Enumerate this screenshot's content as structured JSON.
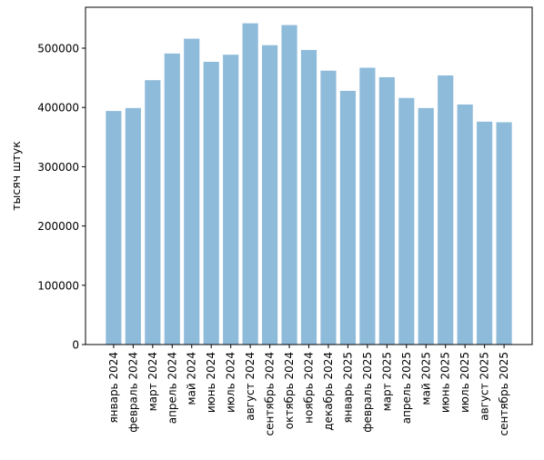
{
  "chart_data": {
    "type": "bar",
    "title": "",
    "xlabel": "",
    "ylabel": "тысяч штук",
    "categories": [
      "январь 2024",
      "февраль 2024",
      "март 2024",
      "апрель 2024",
      "май 2024",
      "июнь 2024",
      "июль 2024",
      "август 2024",
      "сентябрь 2024",
      "октябрь 2024",
      "ноябрь 2024",
      "декабрь 2024",
      "январь 2025",
      "февраль 2025",
      "март 2025",
      "апрель 2025",
      "май 2025",
      "июнь 2025",
      "июль 2025",
      "август 2025",
      "сентябрь 2025"
    ],
    "values": [
      394000,
      399000,
      446000,
      491000,
      516000,
      477000,
      489000,
      542000,
      505000,
      539000,
      497000,
      462000,
      428000,
      467000,
      451000,
      416000,
      399000,
      454000,
      405000,
      376000,
      375000
    ],
    "ylim": [
      0,
      569000
    ],
    "yticks": [
      0,
      100000,
      200000,
      300000,
      400000,
      500000
    ],
    "bar_color": "#8fbbda",
    "grid": false,
    "legend": "none"
  }
}
